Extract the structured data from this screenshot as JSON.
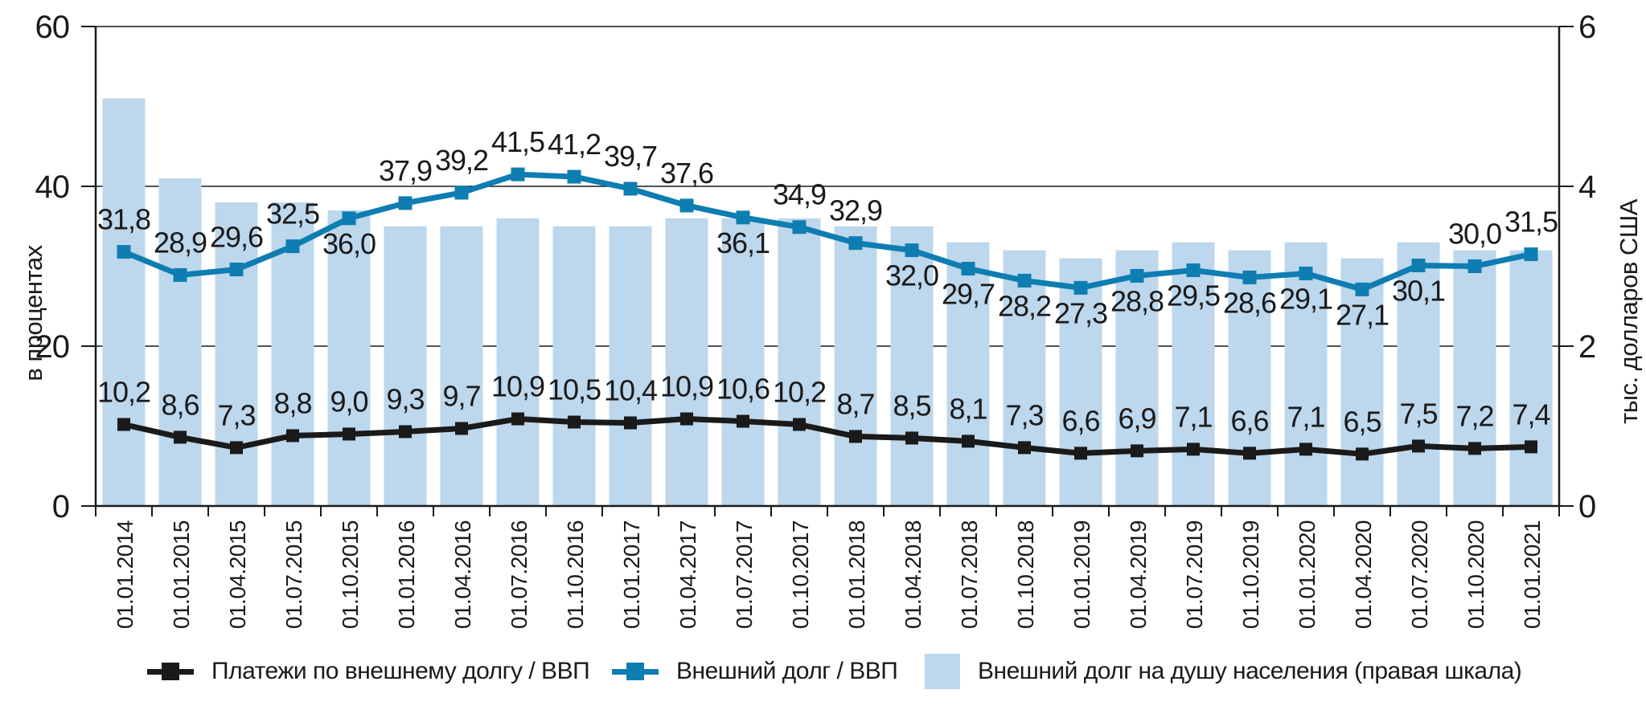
{
  "chart_data": {
    "type": "combo-bar-line",
    "categories": [
      "01.01.2014",
      "01.01.2015",
      "01.04.2015",
      "01.07.2015",
      "01.10.2015",
      "01.01.2016",
      "01.04.2016",
      "01.07.2016",
      "01.10.2016",
      "01.01.2017",
      "01.04.2017",
      "01.07.2017",
      "01.10.2017",
      "01.01.2018",
      "01.04.2018",
      "01.07.2018",
      "01.10.2018",
      "01.01.2019",
      "01.04.2019",
      "01.07.2019",
      "01.10.2019",
      "01.01.2020",
      "01.04.2020",
      "01.07.2020",
      "01.10.2020",
      "01.01.2021"
    ],
    "series": [
      {
        "name": "Платежи по внешнему долгу / ВВП",
        "type": "line",
        "axis": "left",
        "color": "#1a1a1a",
        "marker": "square",
        "values": [
          10.2,
          8.6,
          7.3,
          8.8,
          9.0,
          9.3,
          9.7,
          10.9,
          10.5,
          10.4,
          10.9,
          10.6,
          10.2,
          8.7,
          8.5,
          8.1,
          7.3,
          6.6,
          6.9,
          7.1,
          6.6,
          7.1,
          6.5,
          7.5,
          7.2,
          7.4
        ],
        "labels": [
          "10,2",
          "8,6",
          "7,3",
          "8,8",
          "9,0",
          "9,3",
          "9,7",
          "10,9",
          "10,5",
          "10,4",
          "10,9",
          "10,6",
          "10,2",
          "8,7",
          "8,5",
          "8,1",
          "7,3",
          "6,6",
          "6,9",
          "7,1",
          "6,6",
          "7,1",
          "6,5",
          "7,5",
          "7,2",
          "7,4"
        ]
      },
      {
        "name": "Внешний долг / ВВП",
        "type": "line",
        "axis": "left",
        "color": "#0e7db2",
        "marker": "square",
        "values": [
          31.8,
          28.9,
          29.6,
          32.5,
          36.0,
          37.9,
          39.2,
          41.5,
          41.2,
          39.7,
          37.6,
          36.1,
          34.9,
          32.9,
          32.0,
          29.7,
          28.2,
          27.3,
          28.8,
          29.5,
          28.6,
          29.1,
          27.1,
          30.1,
          30.0,
          31.5
        ],
        "labels": [
          "31,8",
          "28,9",
          "29,6",
          "32,5",
          "36,0",
          "37,9",
          "39,2",
          "41,5",
          "41,2",
          "39,7",
          "37,6",
          "36,1",
          "34,9",
          "32,9",
          "32,0",
          "29,7",
          "28,2",
          "27,3",
          "28,8",
          "29,5",
          "28,6",
          "29,1",
          "27,1",
          "30,1",
          "30,0",
          "31,5"
        ],
        "label_side": [
          "above",
          "above",
          "above",
          "above",
          "below",
          "above",
          "above",
          "above",
          "above",
          "above",
          "above",
          "below",
          "above",
          "above",
          "below",
          "below",
          "below",
          "below",
          "below",
          "below",
          "below",
          "below",
          "below",
          "below",
          "above",
          "above"
        ]
      },
      {
        "name": "Внешний долг на душу населения (правая шкала)",
        "type": "bar",
        "axis": "right",
        "color": "#bdd7ec",
        "values": [
          5.1,
          4.1,
          3.8,
          3.8,
          3.7,
          3.5,
          3.5,
          3.6,
          3.5,
          3.5,
          3.6,
          3.6,
          3.6,
          3.5,
          3.5,
          3.3,
          3.2,
          3.1,
          3.2,
          3.3,
          3.2,
          3.3,
          3.1,
          3.3,
          3.2,
          3.2
        ]
      }
    ],
    "left_axis": {
      "title": "в процентах",
      "ticks": [
        0,
        20,
        40,
        60
      ],
      "min": 0,
      "max": 60
    },
    "right_axis": {
      "title": "тыс. долларов США",
      "ticks": [
        0,
        2,
        4,
        6
      ],
      "min": 0,
      "max": 6
    },
    "grid": "horizontal",
    "legend_position": "bottom"
  }
}
